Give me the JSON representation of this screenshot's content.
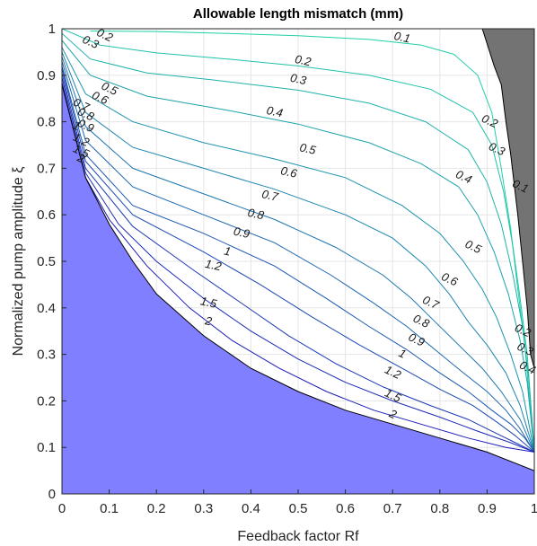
{
  "chart_data": {
    "type": "contour",
    "title": "Allowable length mismatch (mm)",
    "xlabel": "Feedback factor Rf",
    "ylabel": "Normalized pump amplitude ξ",
    "xlim": [
      0,
      1
    ],
    "ylim": [
      0,
      1
    ],
    "x_ticks": [
      "0",
      "0.1",
      "0.2",
      "0.3",
      "0.4",
      "0.5",
      "0.6",
      "0.7",
      "0.8",
      "0.9",
      "1"
    ],
    "y_ticks": [
      "0",
      "0.1",
      "0.2",
      "0.3",
      "0.4",
      "0.5",
      "0.6",
      "0.7",
      "0.8",
      "0.9",
      "1"
    ],
    "grid": true,
    "colors": {
      "invalid_region": "#7f7fff",
      "unstable_region": "#737373",
      "low_levels": "#1fd0a8",
      "high_levels": "#1a1ab8"
    },
    "levels": [
      0.1,
      0.2,
      0.3,
      0.4,
      0.5,
      0.6,
      0.7,
      0.8,
      0.9,
      1,
      1.2,
      1.5,
      2
    ],
    "boundaries": {
      "lower_left_region_edge": [
        [
          0,
          0.88
        ],
        [
          0.05,
          0.68
        ],
        [
          0.1,
          0.58
        ],
        [
          0.15,
          0.5
        ],
        [
          0.2,
          0.43
        ],
        [
          0.3,
          0.34
        ],
        [
          0.4,
          0.27
        ],
        [
          0.5,
          0.22
        ],
        [
          0.6,
          0.18
        ],
        [
          0.7,
          0.15
        ],
        [
          0.8,
          0.12
        ],
        [
          0.9,
          0.09
        ],
        [
          1.0,
          0.05
        ]
      ],
      "upper_right_region_edge": [
        [
          0.89,
          1.0
        ],
        [
          0.915,
          0.92
        ],
        [
          0.93,
          0.88
        ],
        [
          0.94,
          0.8
        ],
        [
          0.95,
          0.73
        ],
        [
          0.965,
          0.6
        ],
        [
          0.975,
          0.5
        ],
        [
          0.985,
          0.4
        ],
        [
          0.992,
          0.3
        ],
        [
          1.0,
          0.27
        ]
      ]
    },
    "contours": [
      {
        "level": 0.1,
        "label": "0.1",
        "label_pos": [
          0.72,
          0.98
        ],
        "points": [
          [
            0.06,
            0.995
          ],
          [
            0.2,
            0.994
          ],
          [
            0.35,
            0.99
          ],
          [
            0.5,
            0.985
          ],
          [
            0.65,
            0.977
          ],
          [
            0.76,
            0.965
          ],
          [
            0.83,
            0.945
          ],
          [
            0.88,
            0.9
          ],
          [
            0.91,
            0.82
          ],
          [
            0.93,
            0.7
          ],
          [
            0.95,
            0.57
          ],
          [
            0.965,
            0.44
          ],
          [
            0.98,
            0.32
          ],
          [
            0.99,
            0.2
          ],
          [
            1.0,
            0.09
          ]
        ]
      },
      {
        "level": 0.2,
        "label": "0.2",
        "label_pos": [
          0.51,
          0.93
        ],
        "points": [
          [
            0.0,
            1.0
          ],
          [
            0.08,
            0.965
          ],
          [
            0.2,
            0.948
          ],
          [
            0.35,
            0.935
          ],
          [
            0.5,
            0.92
          ],
          [
            0.65,
            0.9
          ],
          [
            0.78,
            0.87
          ],
          [
            0.87,
            0.82
          ],
          [
            0.91,
            0.75
          ],
          [
            0.935,
            0.65
          ],
          [
            0.955,
            0.53
          ],
          [
            0.97,
            0.42
          ],
          [
            0.985,
            0.3
          ],
          [
            1.0,
            0.09
          ]
        ]
      },
      {
        "level": 0.3,
        "label": "0.3",
        "label_pos": [
          0.5,
          0.89
        ],
        "points": [
          [
            0.0,
            0.99
          ],
          [
            0.06,
            0.935
          ],
          [
            0.18,
            0.905
          ],
          [
            0.32,
            0.89
          ],
          [
            0.5,
            0.868
          ],
          [
            0.65,
            0.84
          ],
          [
            0.77,
            0.8
          ],
          [
            0.86,
            0.74
          ],
          [
            0.9,
            0.67
          ],
          [
            0.93,
            0.58
          ],
          [
            0.955,
            0.47
          ],
          [
            0.975,
            0.36
          ],
          [
            0.988,
            0.25
          ],
          [
            1.0,
            0.09
          ]
        ]
      },
      {
        "level": 0.4,
        "label": "0.4",
        "label_pos": [
          0.45,
          0.82
        ],
        "points": [
          [
            0.0,
            0.975
          ],
          [
            0.06,
            0.9
          ],
          [
            0.18,
            0.855
          ],
          [
            0.35,
            0.825
          ],
          [
            0.5,
            0.795
          ],
          [
            0.65,
            0.755
          ],
          [
            0.76,
            0.71
          ],
          [
            0.84,
            0.66
          ],
          [
            0.88,
            0.6
          ],
          [
            0.915,
            0.52
          ],
          [
            0.945,
            0.43
          ],
          [
            0.97,
            0.33
          ],
          [
            0.985,
            0.24
          ],
          [
            1.0,
            0.09
          ]
        ]
      },
      {
        "level": 0.5,
        "label": "0.5",
        "label_pos": [
          0.52,
          0.74
        ],
        "points": [
          [
            0.0,
            0.96
          ],
          [
            0.05,
            0.86
          ],
          [
            0.15,
            0.8
          ],
          [
            0.3,
            0.755
          ],
          [
            0.45,
            0.72
          ],
          [
            0.6,
            0.68
          ],
          [
            0.72,
            0.62
          ],
          [
            0.8,
            0.56
          ],
          [
            0.85,
            0.5
          ],
          [
            0.89,
            0.44
          ],
          [
            0.92,
            0.38
          ],
          [
            0.95,
            0.3
          ],
          [
            0.975,
            0.22
          ],
          [
            1.0,
            0.09
          ]
        ]
      },
      {
        "level": 0.6,
        "label": "0.6",
        "label_pos": [
          0.48,
          0.69
        ],
        "points": [
          [
            0.0,
            0.95
          ],
          [
            0.05,
            0.82
          ],
          [
            0.15,
            0.745
          ],
          [
            0.3,
            0.7
          ],
          [
            0.45,
            0.655
          ],
          [
            0.6,
            0.6
          ],
          [
            0.7,
            0.55
          ],
          [
            0.77,
            0.49
          ],
          [
            0.82,
            0.43
          ],
          [
            0.86,
            0.37
          ],
          [
            0.9,
            0.32
          ],
          [
            0.94,
            0.26
          ],
          [
            0.97,
            0.19
          ],
          [
            1.0,
            0.09
          ]
        ]
      },
      {
        "level": 0.7,
        "label": "0.7",
        "label_pos": [
          0.44,
          0.64
        ],
        "points": [
          [
            0.0,
            0.94
          ],
          [
            0.05,
            0.79
          ],
          [
            0.15,
            0.7
          ],
          [
            0.3,
            0.645
          ],
          [
            0.45,
            0.59
          ],
          [
            0.58,
            0.53
          ],
          [
            0.68,
            0.47
          ],
          [
            0.74,
            0.42
          ],
          [
            0.79,
            0.37
          ],
          [
            0.84,
            0.32
          ],
          [
            0.89,
            0.27
          ],
          [
            0.93,
            0.22
          ],
          [
            0.97,
            0.16
          ],
          [
            1.0,
            0.09
          ]
        ]
      },
      {
        "level": 0.8,
        "label": "0.8",
        "label_pos": [
          0.41,
          0.6
        ],
        "points": [
          [
            0.0,
            0.93
          ],
          [
            0.05,
            0.76
          ],
          [
            0.15,
            0.66
          ],
          [
            0.3,
            0.6
          ],
          [
            0.45,
            0.54
          ],
          [
            0.57,
            0.47
          ],
          [
            0.66,
            0.41
          ],
          [
            0.73,
            0.36
          ],
          [
            0.79,
            0.31
          ],
          [
            0.85,
            0.26
          ],
          [
            0.9,
            0.22
          ],
          [
            0.94,
            0.18
          ],
          [
            0.97,
            0.14
          ],
          [
            1.0,
            0.09
          ]
        ]
      },
      {
        "level": 0.9,
        "label": "0.9",
        "label_pos": [
          0.38,
          0.56
        ],
        "points": [
          [
            0.0,
            0.92
          ],
          [
            0.05,
            0.73
          ],
          [
            0.15,
            0.62
          ],
          [
            0.3,
            0.56
          ],
          [
            0.45,
            0.49
          ],
          [
            0.56,
            0.42
          ],
          [
            0.65,
            0.36
          ],
          [
            0.73,
            0.31
          ],
          [
            0.8,
            0.26
          ],
          [
            0.86,
            0.22
          ],
          [
            0.91,
            0.18
          ],
          [
            0.95,
            0.15
          ],
          [
            0.98,
            0.12
          ],
          [
            1.0,
            0.09
          ]
        ]
      },
      {
        "level": 1,
        "label": "1",
        "label_pos": [
          0.35,
          0.52
        ],
        "points": [
          [
            0.0,
            0.915
          ],
          [
            0.05,
            0.715
          ],
          [
            0.15,
            0.6
          ],
          [
            0.3,
            0.52
          ],
          [
            0.42,
            0.45
          ],
          [
            0.53,
            0.38
          ],
          [
            0.63,
            0.32
          ],
          [
            0.72,
            0.27
          ],
          [
            0.8,
            0.225
          ],
          [
            0.87,
            0.19
          ],
          [
            0.92,
            0.155
          ],
          [
            0.96,
            0.125
          ],
          [
            1.0,
            0.09
          ]
        ]
      },
      {
        "level": 1.2,
        "label": "1.2",
        "label_pos": [
          0.32,
          0.49
        ],
        "points": [
          [
            0.0,
            0.905
          ],
          [
            0.05,
            0.7
          ],
          [
            0.15,
            0.575
          ],
          [
            0.28,
            0.48
          ],
          [
            0.38,
            0.41
          ],
          [
            0.48,
            0.34
          ],
          [
            0.58,
            0.28
          ],
          [
            0.68,
            0.23
          ],
          [
            0.78,
            0.19
          ],
          [
            0.86,
            0.16
          ],
          [
            0.92,
            0.13
          ],
          [
            0.96,
            0.11
          ],
          [
            1.0,
            0.09
          ]
        ]
      },
      {
        "level": 1.5,
        "label": "1.5",
        "label_pos": [
          0.31,
          0.41
        ],
        "points": [
          [
            0.0,
            0.895
          ],
          [
            0.05,
            0.69
          ],
          [
            0.12,
            0.58
          ],
          [
            0.2,
            0.5
          ],
          [
            0.3,
            0.42
          ],
          [
            0.4,
            0.35
          ],
          [
            0.5,
            0.29
          ],
          [
            0.6,
            0.24
          ],
          [
            0.7,
            0.2
          ],
          [
            0.8,
            0.165
          ],
          [
            0.88,
            0.135
          ],
          [
            0.95,
            0.11
          ],
          [
            1.0,
            0.09
          ]
        ]
      },
      {
        "level": 2,
        "label": "2",
        "label_pos": [
          0.31,
          0.37
        ],
        "points": [
          [
            0.0,
            0.885
          ],
          [
            0.05,
            0.68
          ],
          [
            0.1,
            0.59
          ],
          [
            0.18,
            0.49
          ],
          [
            0.27,
            0.4
          ],
          [
            0.36,
            0.33
          ],
          [
            0.46,
            0.27
          ],
          [
            0.56,
            0.22
          ],
          [
            0.66,
            0.18
          ],
          [
            0.76,
            0.15
          ],
          [
            0.86,
            0.12
          ],
          [
            0.94,
            0.1
          ],
          [
            1.0,
            0.09
          ]
        ]
      }
    ],
    "extra_labels": [
      {
        "text": "0.2",
        "pos": [
          0.09,
          0.985
        ]
      },
      {
        "text": "0.3",
        "pos": [
          0.06,
          0.97
        ]
      },
      {
        "text": "0.5",
        "pos": [
          0.1,
          0.87
        ]
      },
      {
        "text": "0.6",
        "pos": [
          0.08,
          0.85
        ]
      },
      {
        "text": "0.7",
        "pos": [
          0.04,
          0.835
        ]
      },
      {
        "text": "0.8",
        "pos": [
          0.05,
          0.815
        ]
      },
      {
        "text": "0.9",
        "pos": [
          0.05,
          0.79
        ]
      },
      {
        "text": "1",
        "pos": [
          0.03,
          0.79
        ]
      },
      {
        "text": "1.2",
        "pos": [
          0.04,
          0.76
        ]
      },
      {
        "text": "1.5",
        "pos": [
          0.04,
          0.735
        ]
      },
      {
        "text": "2",
        "pos": [
          0.04,
          0.72
        ]
      },
      {
        "text": "0.2",
        "pos": [
          0.905,
          0.8
        ]
      },
      {
        "text": "0.3",
        "pos": [
          0.92,
          0.74
        ]
      },
      {
        "text": "0.1",
        "pos": [
          0.97,
          0.66
        ]
      },
      {
        "text": "0.4",
        "pos": [
          0.85,
          0.68
        ]
      },
      {
        "text": "0.5",
        "pos": [
          0.87,
          0.53
        ]
      },
      {
        "text": "0.6",
        "pos": [
          0.82,
          0.46
        ]
      },
      {
        "text": "0.7",
        "pos": [
          0.78,
          0.41
        ]
      },
      {
        "text": "0.8",
        "pos": [
          0.76,
          0.37
        ]
      },
      {
        "text": "0.9",
        "pos": [
          0.75,
          0.33
        ]
      },
      {
        "text": "1",
        "pos": [
          0.72,
          0.3
        ]
      },
      {
        "text": "1.2",
        "pos": [
          0.7,
          0.26
        ]
      },
      {
        "text": "1.5",
        "pos": [
          0.7,
          0.21
        ]
      },
      {
        "text": "2",
        "pos": [
          0.7,
          0.17
        ]
      },
      {
        "text": "0.2",
        "pos": [
          0.975,
          0.35
        ]
      },
      {
        "text": "0.3",
        "pos": [
          0.98,
          0.31
        ]
      },
      {
        "text": "0.4",
        "pos": [
          0.985,
          0.27
        ]
      }
    ]
  }
}
